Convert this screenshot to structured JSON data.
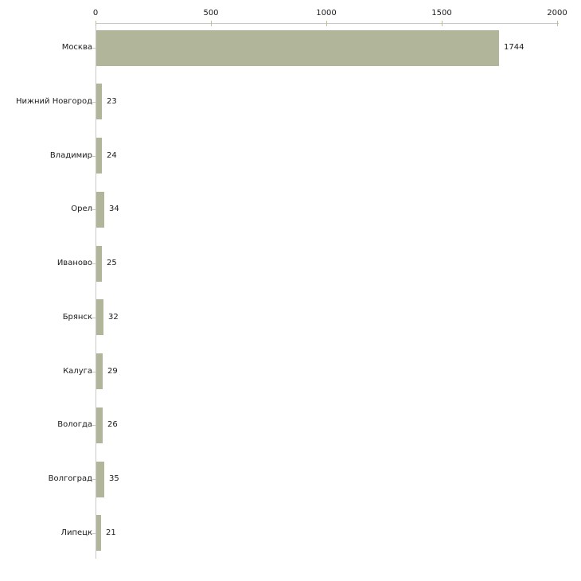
{
  "chart_data": {
    "type": "bar",
    "orientation": "horizontal",
    "title": "",
    "xlabel": "",
    "ylabel": "",
    "categories": [
      "Москва",
      "Нижний Новгород",
      "Владимир",
      "Орел",
      "Иваново",
      "Брянск",
      "Калуга",
      "Вологда",
      "Волгоград",
      "Липецк"
    ],
    "values": [
      1744,
      23,
      24,
      34,
      25,
      32,
      29,
      26,
      35,
      21
    ],
    "value_labels": [
      "1744",
      "23",
      "24",
      "34",
      "25",
      "32",
      "29",
      "26",
      "35",
      "21"
    ],
    "x_ticks": [
      0,
      500,
      1000,
      1500,
      2000
    ],
    "x_tick_labels": [
      "0",
      "500",
      "1000",
      "1500",
      "2000"
    ],
    "xlim": [
      0,
      2000
    ],
    "grid": false,
    "legend": false,
    "axis_position": "top",
    "colors": {
      "bar": "#b1b69b",
      "axis": "#c9c9c9",
      "axis_tick": "#bdc08c",
      "category_tick": "#c6c6b6",
      "text": "#1a1a1a",
      "background": "#ffffff"
    }
  }
}
